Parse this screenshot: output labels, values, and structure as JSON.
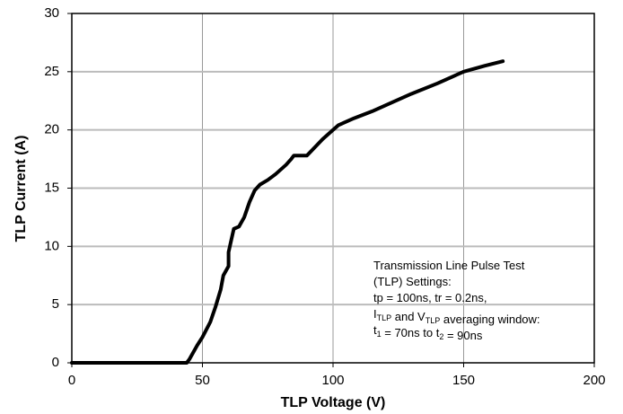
{
  "chart_data": {
    "type": "line",
    "xlabel": "TLP Voltage (V)",
    "ylabel": "TLP Current (A)",
    "xlim": [
      0,
      200
    ],
    "xticks": [
      0,
      50,
      100,
      150,
      200
    ],
    "ylim": [
      0,
      30
    ],
    "yticks": [
      0,
      5,
      10,
      15,
      20,
      25,
      30
    ],
    "grid": true,
    "series": [
      {
        "color": "#000000",
        "x": [
          0,
          44,
          45,
          48,
          50,
          53,
          55,
          57,
          58,
          60,
          60,
          61,
          62,
          64,
          66,
          68,
          70,
          72,
          75,
          78,
          82,
          84,
          85,
          90,
          93,
          96,
          100,
          102,
          108,
          115,
          122,
          130,
          140,
          150,
          158,
          165
        ],
        "values": [
          0,
          0,
          0.3,
          1.5,
          2.2,
          3.5,
          4.8,
          6.3,
          7.5,
          8.3,
          9.5,
          10.5,
          11.5,
          11.7,
          12.5,
          13.8,
          14.8,
          15.3,
          15.7,
          16.2,
          17,
          17.5,
          17.8,
          17.8,
          18.5,
          19.2,
          20,
          20.4,
          21,
          21.6,
          22.3,
          23.1,
          24,
          25,
          25.5,
          25.9
        ]
      }
    ],
    "annotation": [
      [
        "Transmission Line Pulse Test"
      ],
      [
        "(TLP) Settings:"
      ],
      [
        "tp = 100ns, tr = 0.2ns,"
      ],
      [
        "I",
        {
          "sub": "TLP"
        },
        " and V",
        {
          "sub": "TLP"
        },
        " averaging window:"
      ],
      [
        "t",
        {
          "sub": "1"
        },
        " = 70ns to t",
        {
          "sub": "2"
        },
        " = 90ns"
      ]
    ]
  }
}
